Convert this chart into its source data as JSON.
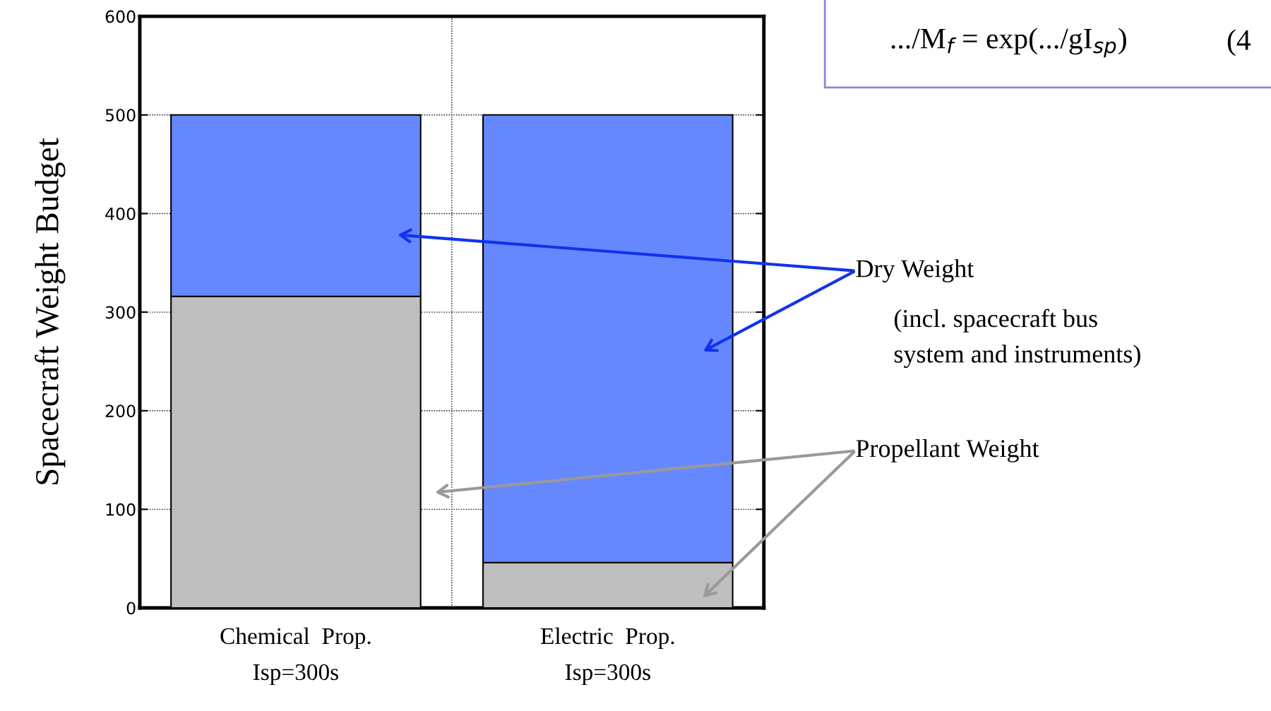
{
  "chart_data": {
    "type": "bar",
    "stacked": true,
    "ylabel": "Spacecraft Weight Budget",
    "categories": [
      "Chemical  Prop.\nIsp=300s",
      "Electric  Prop.\nIsp=300s"
    ],
    "series": [
      {
        "name": "Propellant Weight",
        "color": "#bebebe",
        "values": [
          316,
          46
        ]
      },
      {
        "name": "Dry Weight",
        "color": "#6688ff",
        "values": [
          184,
          454
        ]
      }
    ],
    "ylim": [
      0,
      600
    ],
    "yticks": [
      0,
      100,
      200,
      300,
      400,
      500,
      600
    ],
    "grid": true,
    "legend": false,
    "annotations": [
      "(incl. spacecraft bus\nsystem and instruments)",
      ".../M$_{f}$ = exp(.../gI$_{sp}$)",
      "(4"
    ]
  }
}
